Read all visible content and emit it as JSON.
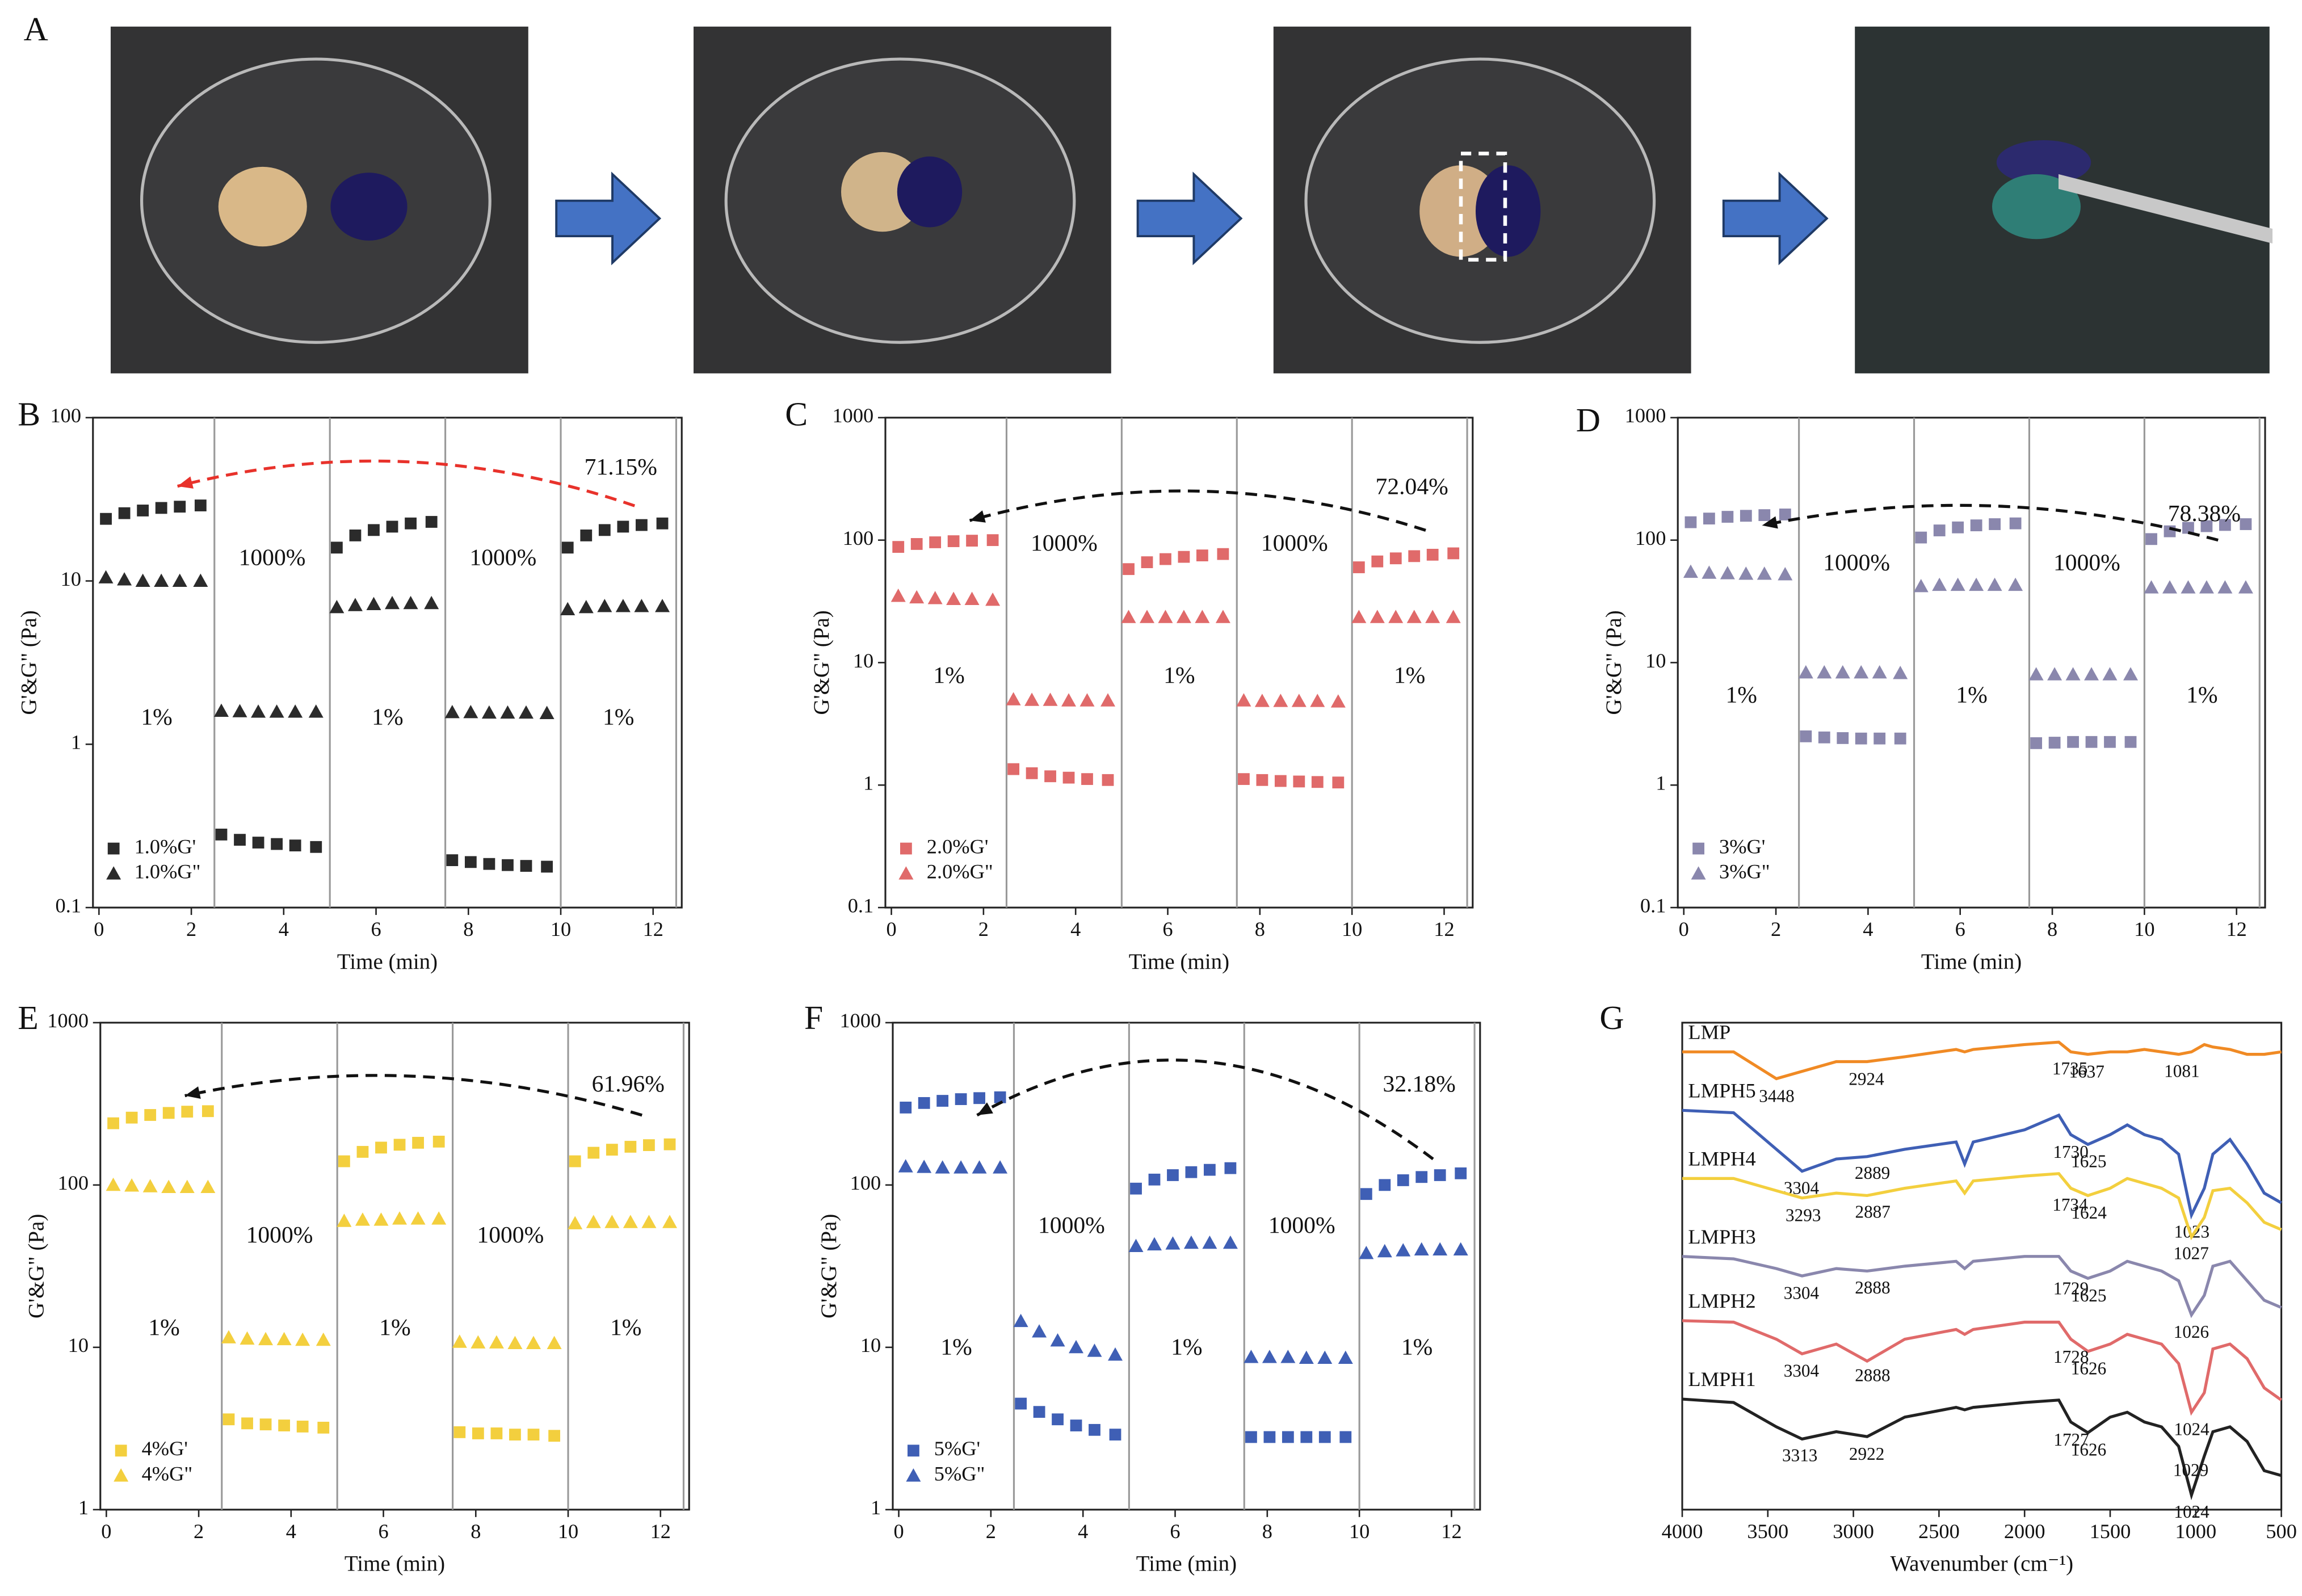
{
  "panel_a": {
    "label": "A"
  },
  "chart_data": [
    {
      "type": "scatter",
      "panel": "B",
      "x": [
        0.15,
        0.55,
        0.95,
        1.35,
        1.75,
        2.2,
        2.65,
        3.05,
        3.45,
        3.85,
        4.25,
        4.7,
        5.15,
        5.55,
        5.95,
        6.35,
        6.75,
        7.2,
        7.65,
        8.05,
        8.45,
        8.85,
        9.25,
        9.7,
        10.15,
        10.55,
        10.95,
        11.35,
        11.75,
        12.2
      ],
      "series": [
        {
          "name": "1.0%G'",
          "color": "#2b2b2b",
          "marker": "square",
          "values": [
            24,
            26,
            27,
            28,
            28.5,
            29,
            0.28,
            0.26,
            0.25,
            0.245,
            0.24,
            0.235,
            16,
            19,
            20.5,
            21.5,
            22.5,
            23,
            0.195,
            0.19,
            0.185,
            0.182,
            0.18,
            0.178,
            16,
            19,
            20.5,
            21.5,
            22,
            22.5
          ]
        },
        {
          "name": "1.0%G\"",
          "color": "#2b2b2b",
          "marker": "triangle",
          "values": [
            10.5,
            10.2,
            10,
            10,
            10,
            10,
            1.6,
            1.59,
            1.58,
            1.58,
            1.58,
            1.58,
            6.9,
            7.1,
            7.2,
            7.3,
            7.3,
            7.3,
            1.57,
            1.57,
            1.56,
            1.56,
            1.56,
            1.55,
            6.7,
            6.9,
            7,
            7,
            7,
            7
          ]
        }
      ],
      "xlim": [
        -0.13,
        12.62
      ],
      "xticks": [
        0,
        2,
        4,
        6,
        8,
        10,
        12
      ],
      "ylim": [
        0.1,
        100
      ],
      "yticks": [
        0.1,
        1,
        10,
        100
      ],
      "log_y": true,
      "xlabel": "Time (min)",
      "ylabel": "G'&G\" (Pa)",
      "vlines": [
        2.5,
        5,
        7.5,
        10,
        12.5
      ],
      "annotations": [
        "1%",
        "1000%",
        "1%",
        "1000%",
        "1%",
        "71.15%"
      ],
      "arrow_color": "#e8322b",
      "legend": "lower left"
    },
    {
      "type": "scatter",
      "panel": "C",
      "x": [
        0.15,
        0.55,
        0.95,
        1.35,
        1.75,
        2.2,
        2.65,
        3.05,
        3.45,
        3.85,
        4.25,
        4.7,
        5.15,
        5.55,
        5.95,
        6.35,
        6.75,
        7.2,
        7.65,
        8.05,
        8.45,
        8.85,
        9.25,
        9.7,
        10.15,
        10.55,
        10.95,
        11.35,
        11.75,
        12.2
      ],
      "series": [
        {
          "name": "2.0%G'",
          "color": "#e06a6a",
          "marker": "square",
          "values": [
            88,
            93,
            96,
            98,
            99,
            100,
            1.35,
            1.25,
            1.18,
            1.15,
            1.12,
            1.1,
            58,
            66,
            70,
            73,
            75,
            77,
            1.12,
            1.1,
            1.08,
            1.07,
            1.06,
            1.05,
            60,
            67,
            71,
            74,
            76,
            78
          ]
        },
        {
          "name": "2.0%G\"",
          "color": "#e06a6a",
          "marker": "triangle",
          "values": [
            35,
            34,
            33.5,
            33,
            33,
            32.5,
            5,
            4.95,
            4.95,
            4.9,
            4.9,
            4.9,
            23.5,
            23.5,
            23.5,
            23.5,
            23.5,
            23.5,
            4.9,
            4.85,
            4.85,
            4.85,
            4.85,
            4.8,
            23.5,
            23.5,
            23.5,
            23.5,
            23.5,
            23.5
          ]
        }
      ],
      "xlim": [
        -0.13,
        12.62
      ],
      "xticks": [
        0,
        2,
        4,
        6,
        8,
        10,
        12
      ],
      "ylim": [
        0.1,
        1000
      ],
      "yticks": [
        0.1,
        1,
        10,
        100,
        1000
      ],
      "log_y": true,
      "xlabel": "Time (min)",
      "ylabel": "G'&G\" (Pa)",
      "vlines": [
        2.5,
        5,
        7.5,
        10,
        12.5
      ],
      "annotations": [
        "1%",
        "1000%",
        "1%",
        "1000%",
        "1%",
        "72.04%"
      ],
      "arrow_color": "#111111",
      "legend": "lower left"
    },
    {
      "type": "scatter",
      "panel": "D",
      "x": [
        0.15,
        0.55,
        0.95,
        1.35,
        1.75,
        2.2,
        2.65,
        3.05,
        3.45,
        3.85,
        4.25,
        4.7,
        5.15,
        5.55,
        5.95,
        6.35,
        6.75,
        7.2,
        7.65,
        8.05,
        8.45,
        8.85,
        9.25,
        9.7,
        10.15,
        10.55,
        10.95,
        11.35,
        11.75,
        12.2
      ],
      "series": [
        {
          "name": "3%G'",
          "color": "#8a87ad",
          "marker": "square",
          "values": [
            140,
            150,
            155,
            158,
            160,
            162,
            2.5,
            2.45,
            2.42,
            2.4,
            2.4,
            2.4,
            105,
            120,
            127,
            132,
            135,
            137,
            2.2,
            2.22,
            2.25,
            2.25,
            2.25,
            2.25,
            102,
            118,
            126,
            130,
            133,
            135
          ]
        },
        {
          "name": "3%G\"",
          "color": "#8a87ad",
          "marker": "triangle",
          "values": [
            55,
            54,
            53.5,
            53,
            53,
            52.5,
            8.3,
            8.3,
            8.3,
            8.3,
            8.3,
            8.2,
            42,
            43,
            43,
            43,
            43,
            43,
            8,
            8,
            8,
            8,
            8,
            8,
            41,
            41,
            41,
            41,
            41,
            41
          ]
        }
      ],
      "xlim": [
        -0.13,
        12.62
      ],
      "xticks": [
        0,
        2,
        4,
        6,
        8,
        10,
        12
      ],
      "ylim": [
        0.1,
        1000
      ],
      "yticks": [
        0.1,
        1,
        10,
        100,
        1000
      ],
      "log_y": true,
      "xlabel": "Time (min)",
      "ylabel": "G'&G\" (Pa)",
      "vlines": [
        2.5,
        5,
        7.5,
        10,
        12.5
      ],
      "annotations": [
        "1%",
        "1000%",
        "1%",
        "1000%",
        "1%",
        "78.38%"
      ],
      "arrow_color": "#111111",
      "legend": "lower left"
    },
    {
      "type": "scatter",
      "panel": "E",
      "x": [
        0.15,
        0.55,
        0.95,
        1.35,
        1.75,
        2.2,
        2.65,
        3.05,
        3.45,
        3.85,
        4.25,
        4.7,
        5.15,
        5.55,
        5.95,
        6.35,
        6.75,
        7.2,
        7.65,
        8.05,
        8.45,
        8.85,
        9.25,
        9.7,
        10.15,
        10.55,
        10.95,
        11.35,
        11.75,
        12.2
      ],
      "series": [
        {
          "name": "4%G'",
          "color": "#f3cf3e",
          "marker": "square",
          "values": [
            240,
            260,
            270,
            278,
            283,
            285,
            3.6,
            3.4,
            3.35,
            3.3,
            3.25,
            3.2,
            140,
            160,
            170,
            177,
            182,
            185,
            3,
            2.95,
            2.95,
            2.9,
            2.9,
            2.85,
            140,
            158,
            165,
            172,
            176,
            178
          ]
        },
        {
          "name": "4%G\"",
          "color": "#f3cf3e",
          "marker": "triangle",
          "values": [
            100,
            99,
            98,
            97,
            97,
            97,
            11.5,
            11.3,
            11.2,
            11.2,
            11.1,
            11.1,
            60,
            61,
            61,
            62,
            62,
            62,
            10.8,
            10.7,
            10.7,
            10.6,
            10.6,
            10.6,
            58,
            59,
            59,
            59,
            59,
            59
          ]
        }
      ],
      "xlim": [
        -0.13,
        12.62
      ],
      "xticks": [
        0,
        2,
        4,
        6,
        8,
        10,
        12
      ],
      "ylim": [
        1,
        1000
      ],
      "yticks": [
        1,
        10,
        100,
        1000
      ],
      "log_y": true,
      "xlabel": "Time (min)",
      "ylabel": "G'&G\" (Pa)",
      "vlines": [
        2.5,
        5,
        7.5,
        10,
        12.5
      ],
      "annotations": [
        "1%",
        "1000%",
        "1%",
        "1000%",
        "1%",
        "61.96%"
      ],
      "arrow_color": "#111111",
      "legend": "lower left"
    },
    {
      "type": "scatter",
      "panel": "F",
      "x": [
        0.15,
        0.55,
        0.95,
        1.35,
        1.75,
        2.2,
        2.65,
        3.05,
        3.45,
        3.85,
        4.25,
        4.7,
        5.15,
        5.55,
        5.95,
        6.35,
        6.75,
        7.2,
        7.65,
        8.05,
        8.45,
        8.85,
        9.25,
        9.7,
        10.15,
        10.55,
        10.95,
        11.35,
        11.75,
        12.2
      ],
      "series": [
        {
          "name": "5%G'",
          "color": "#3f5fb5",
          "marker": "square",
          "values": [
            300,
            320,
            330,
            338,
            343,
            347,
            4.5,
            4,
            3.6,
            3.3,
            3.1,
            2.9,
            95,
            108,
            115,
            120,
            124,
            127,
            2.8,
            2.8,
            2.8,
            2.8,
            2.8,
            2.8,
            88,
            100,
            107,
            112,
            115,
            118
          ]
        },
        {
          "name": "5%G\"",
          "color": "#3f5fb5",
          "marker": "triangle",
          "values": [
            130,
            129,
            128,
            128,
            128,
            128,
            14.5,
            12.5,
            11,
            10,
            9.5,
            9,
            42,
            43,
            43.5,
            44,
            44,
            44,
            8.7,
            8.7,
            8.7,
            8.6,
            8.6,
            8.6,
            38,
            39,
            39.5,
            40,
            40,
            40
          ]
        }
      ],
      "xlim": [
        -0.13,
        12.62
      ],
      "xticks": [
        0,
        2,
        4,
        6,
        8,
        10,
        12
      ],
      "ylim": [
        1,
        1000
      ],
      "yticks": [
        1,
        10,
        100,
        1000
      ],
      "log_y": true,
      "xlabel": "Time (min)",
      "ylabel": "G'&G\" (Pa)",
      "vlines": [
        2.5,
        5,
        7.5,
        10,
        12.5
      ],
      "annotations": [
        "1%",
        "1000%",
        "1%",
        "1000%",
        "1%",
        "32.18%"
      ],
      "arrow_color": "#111111",
      "legend": "lower left"
    },
    {
      "type": "line",
      "panel": "G",
      "x": [
        4000,
        3700,
        3450,
        3300,
        3100,
        2920,
        2700,
        2400,
        2350,
        2300,
        2000,
        1800,
        1730,
        1630,
        1500,
        1400,
        1300,
        1200,
        1100,
        1025,
        950,
        900,
        800,
        700,
        600,
        500
      ],
      "series": [
        {
          "name": "LMP",
          "color": "#f08a24",
          "values": [
            94,
            94,
            88.5,
            90,
            92,
            92,
            93,
            94.5,
            94,
            94.5,
            95.5,
            96,
            94,
            93.5,
            94,
            94,
            94.5,
            94,
            93.5,
            94,
            95.5,
            95,
            94.5,
            93.5,
            93.5,
            94
          ],
          "peaks": [
            3448,
            2924,
            1735,
            1637,
            1081
          ]
        },
        {
          "name": "LMPH5",
          "color": "#3f5fb5",
          "values": [
            82,
            81.5,
            74,
            69.5,
            72,
            72.5,
            74,
            75.5,
            71,
            75.5,
            78,
            81,
            77,
            75,
            77,
            79,
            77,
            76,
            73,
            60.5,
            66,
            73,
            76,
            71,
            65,
            63
          ],
          "peaks": [
            3304,
            2889,
            1730,
            1625,
            1023
          ]
        },
        {
          "name": "LMPH4",
          "color": "#f3cf3e",
          "values": [
            68,
            68,
            65.5,
            64,
            65,
            64.5,
            66,
            67.5,
            65,
            67.5,
            68.5,
            69,
            66,
            64.5,
            66,
            68,
            67,
            66,
            64,
            56,
            60,
            65.5,
            66,
            63,
            59,
            57.5
          ],
          "peaks": [
            3293,
            2887,
            1734,
            1624,
            1027
          ]
        },
        {
          "name": "LMPH3",
          "color": "#8a87ad",
          "values": [
            52,
            51.5,
            49.5,
            48,
            49.5,
            49,
            50,
            51,
            49.5,
            51,
            52,
            52,
            49,
            47.5,
            49,
            51,
            50,
            49,
            47,
            40,
            44,
            50,
            51,
            47,
            43,
            41.5
          ],
          "peaks": [
            3304,
            2888,
            1729,
            1625,
            1026
          ]
        },
        {
          "name": "LMPH2",
          "color": "#e06a6a",
          "values": [
            38.8,
            38.5,
            35,
            32,
            34,
            30.5,
            35,
            37,
            36,
            37,
            38.5,
            38.5,
            35,
            32.5,
            34,
            36,
            35,
            34,
            30,
            20,
            24,
            33,
            34,
            31,
            25,
            22.5
          ],
          "peaks": [
            3304,
            2888,
            1728,
            1626,
            1024
          ]
        },
        {
          "name": "LMPH1",
          "color": "#222222",
          "values": [
            22.7,
            22,
            17,
            14.5,
            16,
            15,
            19,
            21,
            20.5,
            21,
            22,
            22.5,
            18,
            15.8,
            19,
            20,
            18,
            17,
            13,
            3,
            11,
            16,
            17,
            14,
            8,
            7
          ],
          "peaks": [
            3313,
            2922,
            1727,
            1626,
            1024,
            1029
          ]
        }
      ],
      "xlim": [
        4000,
        500
      ],
      "xticks": [
        4000,
        3500,
        3000,
        2500,
        2000,
        1500,
        1000,
        500
      ],
      "ylim": [
        0,
        100
      ],
      "xlabel": "Wavenumber (cm⁻¹)"
    }
  ]
}
